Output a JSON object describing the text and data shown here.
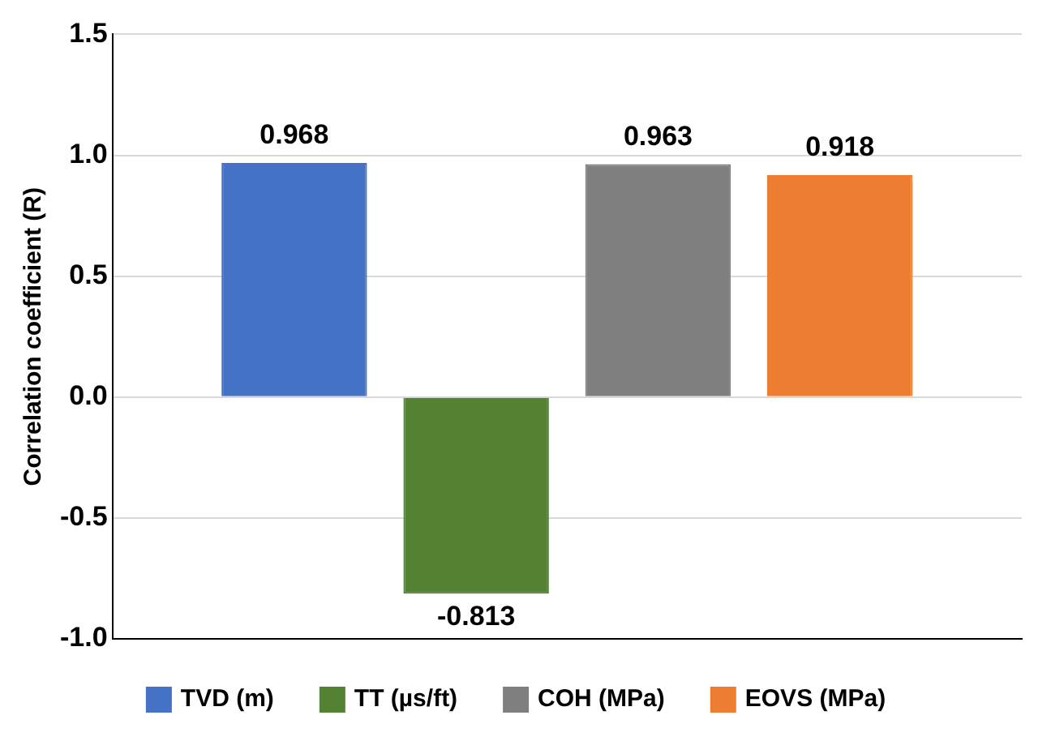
{
  "chart_data": {
    "type": "bar",
    "ylabel": "Correlation coefficient (R)",
    "categories": [
      null
    ],
    "series": [
      {
        "name": "TVD (m)",
        "color": "#4472c4",
        "values": [
          0.968
        ]
      },
      {
        "name": "TT (µs/ft)",
        "color": "#548235",
        "values": [
          -0.813
        ]
      },
      {
        "name": "COH (MPa)",
        "color": "#7f7f7f",
        "values": [
          0.963
        ]
      },
      {
        "name": "EOVS (MPa)",
        "color": "#ed7d31",
        "values": [
          0.918
        ]
      }
    ],
    "ylim": [
      -1,
      1.5
    ],
    "yticks": [
      {
        "value": -1,
        "label": "-1.0"
      },
      {
        "value": -0.5,
        "label": "-0.5"
      },
      {
        "value": 0,
        "label": "0.0"
      },
      {
        "value": 0.5,
        "label": "0.5"
      },
      {
        "value": 1,
        "label": "1.0"
      },
      {
        "value": 1.5,
        "label": "1.5"
      }
    ],
    "grid": "y",
    "legend": "bottom",
    "data_labels": true,
    "tick_labels": "y"
  }
}
